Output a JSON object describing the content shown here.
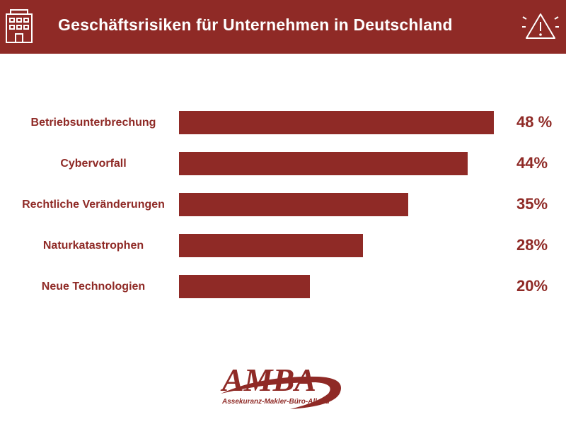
{
  "header": {
    "title": "Geschäftsrisiken für Unternehmen in Deutschland",
    "left_icon": "building-icon",
    "right_icon": "warning-icon"
  },
  "colors": {
    "accent": "#8f2a26",
    "background": "#ffffff"
  },
  "chart_data": {
    "type": "bar",
    "orientation": "horizontal",
    "title": "Geschäftsrisiken für Unternehmen in Deutschland",
    "categories": [
      "Betriebsunterbrechung",
      "Cybervorfall",
      "Rechtliche Veränderungen",
      "Naturkatastrophen",
      "Neue Technologien"
    ],
    "values": [
      48,
      44,
      35,
      28,
      20
    ],
    "value_labels": [
      "48 %",
      "44%",
      "35%",
      "28%",
      "20%"
    ],
    "unit": "%",
    "xlim": [
      0,
      48
    ],
    "grid": false
  },
  "logo": {
    "name": "AMBA",
    "subtitle": "Assekuranz-Makler-Büro-Allgäu"
  }
}
